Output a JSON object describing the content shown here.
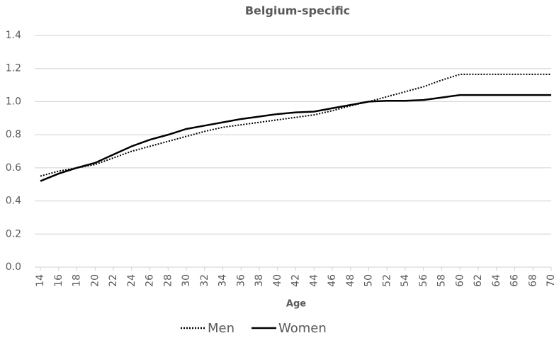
{
  "chart_data": {
    "type": "line",
    "title": "Belgium-specific",
    "x_label": "Age",
    "x": [
      14,
      16,
      18,
      20,
      22,
      24,
      26,
      28,
      30,
      32,
      34,
      36,
      38,
      40,
      42,
      44,
      46,
      48,
      50,
      52,
      54,
      56,
      58,
      60,
      62,
      64,
      66,
      68,
      70
    ],
    "series": [
      {
        "name": "Men",
        "color": "#000000",
        "style": "dotted",
        "values": [
          0.55,
          0.58,
          0.6,
          0.62,
          0.66,
          0.7,
          0.73,
          0.76,
          0.79,
          0.82,
          0.845,
          0.86,
          0.875,
          0.89,
          0.905,
          0.92,
          0.945,
          0.975,
          1.0,
          1.03,
          1.06,
          1.09,
          1.13,
          1.165,
          1.165,
          1.165,
          1.165,
          1.165,
          1.165
        ]
      },
      {
        "name": "Women",
        "color": "#000000",
        "style": "solid",
        "values": [
          0.52,
          0.565,
          0.6,
          0.63,
          0.68,
          0.73,
          0.77,
          0.8,
          0.835,
          0.855,
          0.875,
          0.895,
          0.91,
          0.925,
          0.935,
          0.94,
          0.96,
          0.98,
          1.0,
          1.005,
          1.005,
          1.01,
          1.025,
          1.04,
          1.04,
          1.04,
          1.04,
          1.04,
          1.04
        ]
      }
    ],
    "xlim": [
      14,
      70
    ],
    "xticks": [
      14,
      16,
      18,
      20,
      22,
      24,
      26,
      28,
      30,
      32,
      34,
      36,
      38,
      40,
      42,
      44,
      46,
      48,
      50,
      52,
      54,
      56,
      58,
      60,
      62,
      64,
      66,
      68,
      70
    ],
    "ylim": [
      0,
      1.4
    ],
    "yticks": [
      {
        "value": 0,
        "label": "0.0"
      },
      0.2,
      0.4,
      0.6,
      0.8,
      {
        "value": 1,
        "label": "1.0"
      },
      1.2,
      1.4
    ],
    "grid": true,
    "legend": "bottom"
  }
}
